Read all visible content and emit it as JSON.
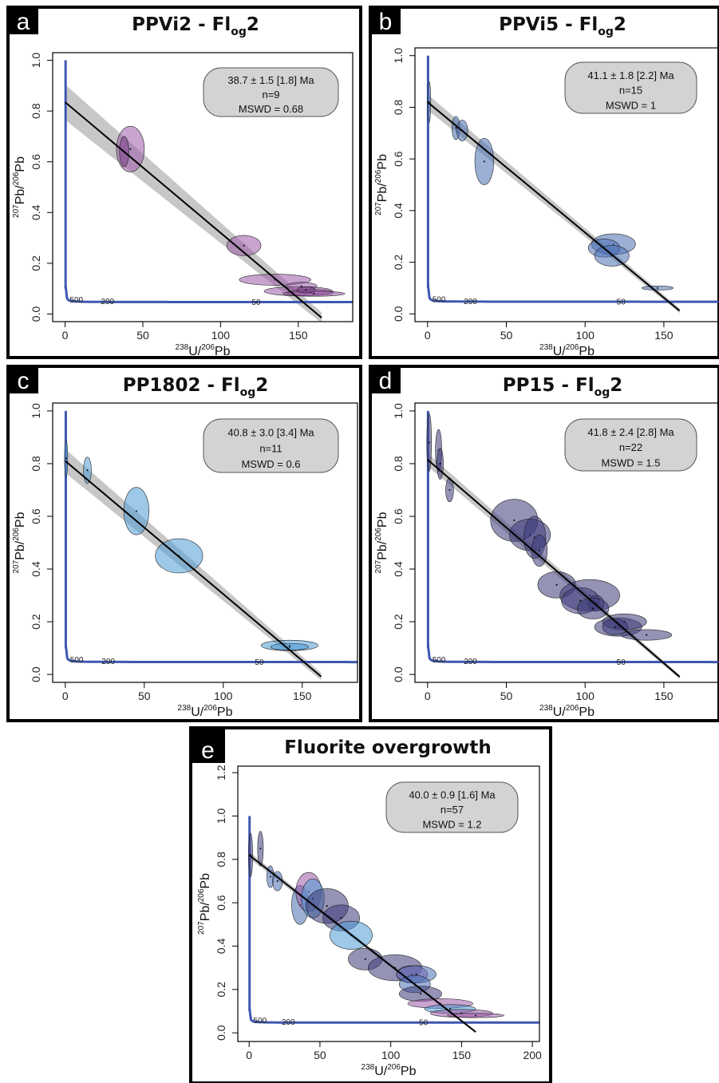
{
  "chart_data": [
    {
      "tag": "a",
      "title_main": "PPVi2 - Fl",
      "title_sub": "og",
      "title_end": "2",
      "type": "scatter",
      "xlabel_pre": "238",
      "xlabel_mid": "U/",
      "xlabel_sup": "206",
      "xlabel_end": "Pb",
      "ylabel_pre": "207",
      "ylabel_mid": "Pb/",
      "ylabel_sup": "206",
      "ylabel_end": "Pb",
      "xlim": [
        -8,
        185
      ],
      "ylim": [
        -0.03,
        1.03
      ],
      "xticks": [
        "0",
        "50",
        "100",
        "150"
      ],
      "xtick_values": [
        0,
        50,
        100,
        150
      ],
      "yticks": [
        "0.0",
        "0.2",
        "0.4",
        "0.6",
        "0.8",
        "1.0"
      ],
      "ytick_values": [
        0,
        0.2,
        0.4,
        0.6,
        0.8,
        1.0
      ],
      "stats": [
        "38.7 ± 1.5 [1.8] Ma",
        "n=9",
        "MSWD = 0.68"
      ],
      "regression": {
        "intercept": 0.835,
        "slope": -0.00515,
        "band": 0.07,
        "x_end": 165
      },
      "concordia_labels": [
        {
          "text": "500",
          "x": 3,
          "y": 0.055
        },
        {
          "text": "200",
          "x": 23,
          "y": 0.048
        },
        {
          "text": "50",
          "x": 120,
          "y": 0.046
        }
      ],
      "ellipses": [
        {
          "x": 42,
          "y": 0.65,
          "rx": 9,
          "ry": 0.09,
          "color": "#9b5aa8"
        },
        {
          "x": 38,
          "y": 0.64,
          "rx": 3,
          "ry": 0.06,
          "color": "#7a3f8a"
        },
        {
          "x": 115,
          "y": 0.27,
          "rx": 11,
          "ry": 0.04,
          "color": "#9b5aa8"
        },
        {
          "x": 135,
          "y": 0.135,
          "rx": 23,
          "ry": 0.022,
          "color": "#9b5aa8"
        },
        {
          "x": 152,
          "y": 0.11,
          "rx": 10,
          "ry": 0.015,
          "color": "#9b5aa8"
        },
        {
          "x": 150,
          "y": 0.09,
          "rx": 22,
          "ry": 0.018,
          "color": "#9b5aa8"
        },
        {
          "x": 158,
          "y": 0.085,
          "rx": 15,
          "ry": 0.012,
          "color": "#9b5aa8"
        },
        {
          "x": 160,
          "y": 0.08,
          "rx": 20,
          "ry": 0.01,
          "color": "#9b5aa8"
        },
        {
          "x": 155,
          "y": 0.095,
          "rx": 6,
          "ry": 0.012,
          "color": "#7a3f8a"
        }
      ]
    },
    {
      "tag": "b",
      "title_main": "PPVi5 - Fl",
      "title_sub": "og",
      "title_end": "2",
      "type": "scatter",
      "xlabel_pre": "238",
      "xlabel_mid": "U/",
      "xlabel_sup": "206",
      "xlabel_end": "Pb",
      "ylabel_pre": "207",
      "ylabel_mid": "Pb/",
      "ylabel_sup": "206",
      "ylabel_end": "Pb",
      "xlim": [
        -8,
        185
      ],
      "ylim": [
        -0.03,
        1.03
      ],
      "xticks": [
        "0",
        "50",
        "100",
        "150"
      ],
      "xtick_values": [
        0,
        50,
        100,
        150
      ],
      "yticks": [
        "0.0",
        "0.2",
        "0.4",
        "0.6",
        "0.8",
        "1.0"
      ],
      "ytick_values": [
        0,
        0.2,
        0.4,
        0.6,
        0.8,
        1.0
      ],
      "stats": [
        "41.1 ± 1.8 [2.2] Ma",
        "n=15",
        "MSWD = 1"
      ],
      "regression": {
        "intercept": 0.82,
        "slope": -0.00505,
        "band": 0.03,
        "x_end": 160
      },
      "concordia_labels": [
        {
          "text": "500",
          "x": 3,
          "y": 0.055
        },
        {
          "text": "200",
          "x": 23,
          "y": 0.048
        },
        {
          "text": "50",
          "x": 120,
          "y": 0.046
        }
      ],
      "ellipses": [
        {
          "x": 1,
          "y": 0.82,
          "rx": 1,
          "ry": 0.08,
          "color": "#4a6fb5"
        },
        {
          "x": 18,
          "y": 0.72,
          "rx": 2.5,
          "ry": 0.045,
          "color": "#4a6fb5"
        },
        {
          "x": 22,
          "y": 0.71,
          "rx": 3.5,
          "ry": 0.04,
          "color": "#4a6fb5"
        },
        {
          "x": 36,
          "y": 0.59,
          "rx": 6,
          "ry": 0.09,
          "color": "#4a6fb5"
        },
        {
          "x": 118,
          "y": 0.27,
          "rx": 14,
          "ry": 0.04,
          "color": "#4a6fb5"
        },
        {
          "x": 112,
          "y": 0.255,
          "rx": 10,
          "ry": 0.035,
          "color": "#4a6fb5"
        },
        {
          "x": 117,
          "y": 0.225,
          "rx": 11,
          "ry": 0.04,
          "color": "#4a6fb5"
        },
        {
          "x": 146,
          "y": 0.1,
          "rx": 10,
          "ry": 0.008,
          "color": "#4a6fb5"
        }
      ]
    },
    {
      "tag": "c",
      "title_main": "PP1802 - Fl",
      "title_sub": "og",
      "title_end": "2",
      "type": "scatter",
      "xlabel_pre": "238",
      "xlabel_mid": "U/",
      "xlabel_sup": "206",
      "xlabel_end": "Pb",
      "ylabel_pre": "207",
      "ylabel_mid": "Pb/",
      "ylabel_sup": "206",
      "ylabel_end": "Pb",
      "xlim": [
        -8,
        185
      ],
      "ylim": [
        -0.03,
        1.03
      ],
      "xticks": [
        "0",
        "50",
        "100",
        "150"
      ],
      "xtick_values": [
        0,
        50,
        100,
        150
      ],
      "yticks": [
        "0.0",
        "0.2",
        "0.4",
        "0.6",
        "0.8",
        "1.0"
      ],
      "ytick_values": [
        0,
        0.2,
        0.4,
        0.6,
        0.8,
        1.0
      ],
      "stats": [
        "40.8 ± 3.0 [3.4] Ma",
        "n=11",
        "MSWD = 0.6"
      ],
      "regression": {
        "intercept": 0.81,
        "slope": -0.00505,
        "band": 0.045,
        "x_end": 162
      },
      "concordia_labels": [
        {
          "text": "500",
          "x": 3,
          "y": 0.055
        },
        {
          "text": "200",
          "x": 23,
          "y": 0.048
        },
        {
          "text": "50",
          "x": 120,
          "y": 0.046
        }
      ],
      "ellipses": [
        {
          "x": 0.5,
          "y": 0.82,
          "rx": 1,
          "ry": 0.07,
          "color": "#4f9bd6"
        },
        {
          "x": 14,
          "y": 0.775,
          "rx": 2.5,
          "ry": 0.05,
          "color": "#4f9bd6"
        },
        {
          "x": 45,
          "y": 0.62,
          "rx": 8,
          "ry": 0.09,
          "color": "#4f9bd6"
        },
        {
          "x": 72,
          "y": 0.45,
          "rx": 15,
          "ry": 0.065,
          "color": "#4f9bd6"
        },
        {
          "x": 142,
          "y": 0.11,
          "rx": 18,
          "ry": 0.02,
          "color": "#4f9bd6"
        },
        {
          "x": 142,
          "y": 0.105,
          "rx": 12,
          "ry": 0.013,
          "color": "#4f9bd6"
        }
      ]
    },
    {
      "tag": "d",
      "title_main": "PP15 - Fl",
      "title_sub": "og",
      "title_end": "2",
      "type": "scatter",
      "xlabel_pre": "238",
      "xlabel_mid": "U/",
      "xlabel_sup": "206",
      "xlabel_end": "Pb",
      "ylabel_pre": "207",
      "ylabel_mid": "Pb/",
      "ylabel_sup": "206",
      "ylabel_end": "Pb",
      "xlim": [
        -8,
        185
      ],
      "ylim": [
        -0.03,
        1.03
      ],
      "xticks": [
        "0",
        "50",
        "100",
        "150"
      ],
      "xtick_values": [
        0,
        50,
        100,
        150
      ],
      "yticks": [
        "0.0",
        "0.2",
        "0.4",
        "0.6",
        "0.8",
        "1.0"
      ],
      "ytick_values": [
        0,
        0.2,
        0.4,
        0.6,
        0.8,
        1.0
      ],
      "stats": [
        "41.8 ± 2.4 [2.8] Ma",
        "n=22",
        "MSWD = 1.5"
      ],
      "regression": {
        "intercept": 0.815,
        "slope": -0.00515,
        "band": 0.025,
        "x_end": 160
      },
      "concordia_labels": [
        {
          "text": "500",
          "x": 3,
          "y": 0.055
        },
        {
          "text": "200",
          "x": 23,
          "y": 0.048
        },
        {
          "text": "50",
          "x": 120,
          "y": 0.046
        }
      ],
      "ellipses": [
        {
          "x": 1,
          "y": 0.88,
          "rx": 1.5,
          "ry": 0.11,
          "color": "#3d3a78"
        },
        {
          "x": 7,
          "y": 0.85,
          "rx": 2,
          "ry": 0.08,
          "color": "#3d3a78"
        },
        {
          "x": 8,
          "y": 0.8,
          "rx": 2,
          "ry": 0.06,
          "color": "#3d3a78"
        },
        {
          "x": 14,
          "y": 0.7,
          "rx": 2.5,
          "ry": 0.045,
          "color": "#3d3a78"
        },
        {
          "x": 55,
          "y": 0.585,
          "rx": 15,
          "ry": 0.08,
          "color": "#3d3a78"
        },
        {
          "x": 65,
          "y": 0.53,
          "rx": 13,
          "ry": 0.06,
          "color": "#3d3a78"
        },
        {
          "x": 68,
          "y": 0.52,
          "rx": 7,
          "ry": 0.08,
          "color": "#3d3a78"
        },
        {
          "x": 71,
          "y": 0.47,
          "rx": 5,
          "ry": 0.06,
          "color": "#3d3a78"
        },
        {
          "x": 82,
          "y": 0.34,
          "rx": 12,
          "ry": 0.05,
          "color": "#3d3a78"
        },
        {
          "x": 103,
          "y": 0.3,
          "rx": 19,
          "ry": 0.06,
          "color": "#3d3a78"
        },
        {
          "x": 97,
          "y": 0.28,
          "rx": 12,
          "ry": 0.05,
          "color": "#3d3a78"
        },
        {
          "x": 107,
          "y": 0.27,
          "rx": 5,
          "ry": 0.03,
          "color": "#3d3a78"
        },
        {
          "x": 105,
          "y": 0.25,
          "rx": 10,
          "ry": 0.04,
          "color": "#3d3a78"
        },
        {
          "x": 121,
          "y": 0.18,
          "rx": 15,
          "ry": 0.035,
          "color": "#3d3a78"
        },
        {
          "x": 125,
          "y": 0.2,
          "rx": 14,
          "ry": 0.03,
          "color": "#3d3a78"
        },
        {
          "x": 139,
          "y": 0.15,
          "rx": 16,
          "ry": 0.02,
          "color": "#3d3a78"
        },
        {
          "x": 119,
          "y": 0.18,
          "rx": 8,
          "ry": 0.03,
          "color": "#3d3a78"
        }
      ]
    },
    {
      "tag": "e",
      "title_main": "Fluorite overgrowth",
      "title_sub": "",
      "title_end": "",
      "type": "scatter",
      "xlabel_pre": "238",
      "xlabel_mid": "U/",
      "xlabel_sup": "206",
      "xlabel_end": "Pb",
      "ylabel_pre": "207",
      "ylabel_mid": "Pb/",
      "ylabel_sup": "206",
      "ylabel_end": "Pb",
      "xlim": [
        -8,
        205
      ],
      "ylim": [
        -0.04,
        1.23
      ],
      "xticks": [
        "0",
        "50",
        "100",
        "150",
        "200"
      ],
      "xtick_values": [
        0,
        50,
        100,
        150,
        200
      ],
      "yticks": [
        "0.0",
        "0.2",
        "0.4",
        "0.6",
        "0.8",
        "1.0",
        "1.2"
      ],
      "ytick_values": [
        0,
        0.2,
        0.4,
        0.6,
        0.8,
        1.0,
        1.2
      ],
      "stats": [
        "40.0 ± 0.9 [1.6] Ma",
        "n=57",
        "MSWD = 1.2"
      ],
      "regression": {
        "intercept": 0.82,
        "slope": -0.0051,
        "band": 0.015,
        "x_end": 160
      },
      "concordia_labels": [
        {
          "text": "500",
          "x": 3,
          "y": 0.055
        },
        {
          "text": "200",
          "x": 23,
          "y": 0.048
        },
        {
          "text": "50",
          "x": 120,
          "y": 0.046
        }
      ],
      "ellipses": [
        {
          "x": 1,
          "y": 0.82,
          "rx": 1.5,
          "ry": 0.1,
          "color": "#3d3a78"
        },
        {
          "x": 8,
          "y": 0.85,
          "rx": 2,
          "ry": 0.08,
          "color": "#3d3a78"
        },
        {
          "x": 15,
          "y": 0.72,
          "rx": 2.5,
          "ry": 0.05,
          "color": "#4a6fb5"
        },
        {
          "x": 20,
          "y": 0.7,
          "rx": 3.5,
          "ry": 0.045,
          "color": "#4a6fb5"
        },
        {
          "x": 36,
          "y": 0.59,
          "rx": 6,
          "ry": 0.09,
          "color": "#4a6fb5"
        },
        {
          "x": 42,
          "y": 0.65,
          "rx": 9,
          "ry": 0.09,
          "color": "#9b5aa8"
        },
        {
          "x": 45,
          "y": 0.62,
          "rx": 8,
          "ry": 0.09,
          "color": "#4f9bd6"
        },
        {
          "x": 55,
          "y": 0.585,
          "rx": 15,
          "ry": 0.08,
          "color": "#3d3a78"
        },
        {
          "x": 65,
          "y": 0.53,
          "rx": 13,
          "ry": 0.06,
          "color": "#3d3a78"
        },
        {
          "x": 72,
          "y": 0.45,
          "rx": 15,
          "ry": 0.065,
          "color": "#4f9bd6"
        },
        {
          "x": 82,
          "y": 0.34,
          "rx": 12,
          "ry": 0.05,
          "color": "#3d3a78"
        },
        {
          "x": 103,
          "y": 0.3,
          "rx": 19,
          "ry": 0.06,
          "color": "#3d3a78"
        },
        {
          "x": 115,
          "y": 0.27,
          "rx": 11,
          "ry": 0.04,
          "color": "#9b5aa8"
        },
        {
          "x": 118,
          "y": 0.27,
          "rx": 14,
          "ry": 0.04,
          "color": "#4a6fb5"
        },
        {
          "x": 117,
          "y": 0.225,
          "rx": 11,
          "ry": 0.04,
          "color": "#4a6fb5"
        },
        {
          "x": 121,
          "y": 0.18,
          "rx": 15,
          "ry": 0.035,
          "color": "#3d3a78"
        },
        {
          "x": 135,
          "y": 0.135,
          "rx": 23,
          "ry": 0.022,
          "color": "#9b5aa8"
        },
        {
          "x": 142,
          "y": 0.11,
          "rx": 18,
          "ry": 0.02,
          "color": "#4f9bd6"
        },
        {
          "x": 150,
          "y": 0.09,
          "rx": 22,
          "ry": 0.018,
          "color": "#9b5aa8"
        },
        {
          "x": 160,
          "y": 0.08,
          "rx": 20,
          "ry": 0.01,
          "color": "#9b5aa8"
        }
      ]
    }
  ],
  "colors": {
    "concordia": "#3f57b0",
    "band": "#bdbdbd",
    "regression": "#000000",
    "stats_box": "#d3d3d3",
    "tag_bg": "#000000",
    "panel_border": "#000000"
  }
}
